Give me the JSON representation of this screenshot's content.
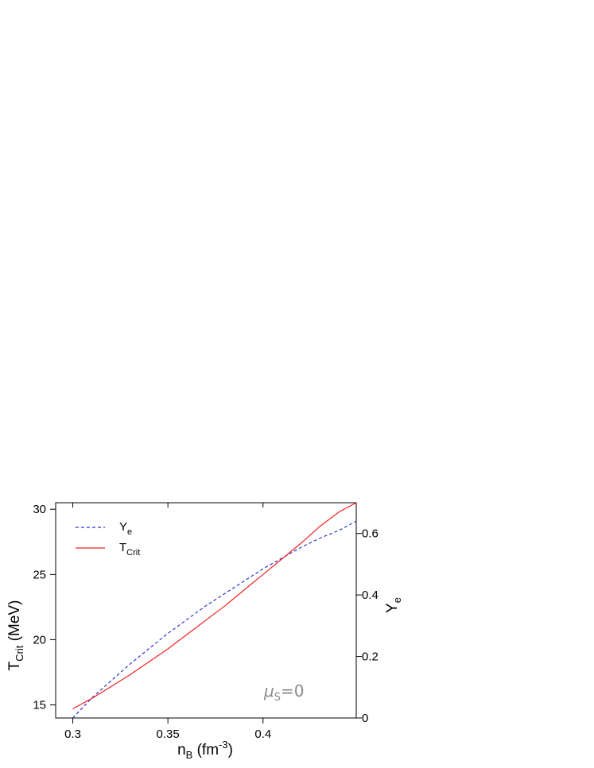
{
  "chart_data": {
    "type": "line",
    "xlabel": {
      "main": "n",
      "sub": "B",
      "unit_pre": " (fm",
      "unit_sup": "-3",
      "unit_post": ")"
    },
    "ylabel_left": {
      "main": "T",
      "sub": "Crit",
      "unit": " (MeV)"
    },
    "ylabel_right": {
      "main": "Y",
      "sub": "e"
    },
    "xlim": [
      0.291,
      0.449
    ],
    "ylim_left": [
      14.0,
      30.5
    ],
    "ylim_right": [
      0.0,
      0.7
    ],
    "x_ticks": [
      0.3,
      0.35,
      0.4
    ],
    "x_tick_labels": [
      "0.3",
      "0.35",
      "0.4"
    ],
    "y_left_ticks": [
      15,
      20,
      25,
      30
    ],
    "y_left_tick_labels": [
      "15",
      "20",
      "25",
      "30"
    ],
    "y_right_ticks": [
      0,
      0.2,
      0.4,
      0.6
    ],
    "y_right_tick_labels": [
      "0",
      "0.2",
      "0.4",
      "0.6"
    ],
    "grid": false,
    "legend_position": "top-left",
    "annotation": {
      "symbol": "μ",
      "sub": "S",
      "rest": "=0",
      "color": "#8a8a8a"
    },
    "series": [
      {
        "name": "Y",
        "name_sub": "e",
        "axis": "right",
        "style": "dashed",
        "color": "#3333cc",
        "x": [
          0.3,
          0.31,
          0.32,
          0.33,
          0.34,
          0.35,
          0.36,
          0.37,
          0.38,
          0.39,
          0.4,
          0.41,
          0.42,
          0.43,
          0.44,
          0.449
        ],
        "y": [
          0.0,
          0.065,
          0.12,
          0.175,
          0.225,
          0.275,
          0.32,
          0.365,
          0.405,
          0.445,
          0.485,
          0.52,
          0.555,
          0.585,
          0.61,
          0.64
        ]
      },
      {
        "name": "T",
        "name_sub": "Crit",
        "axis": "left",
        "style": "solid",
        "color": "#ee2222",
        "x": [
          0.3,
          0.31,
          0.32,
          0.33,
          0.34,
          0.35,
          0.36,
          0.37,
          0.38,
          0.39,
          0.4,
          0.41,
          0.42,
          0.43,
          0.44,
          0.449
        ],
        "y": [
          14.7,
          15.5,
          16.4,
          17.3,
          18.3,
          19.3,
          20.4,
          21.5,
          22.6,
          23.8,
          25.0,
          26.2,
          27.4,
          28.7,
          29.8,
          30.5
        ]
      }
    ]
  }
}
